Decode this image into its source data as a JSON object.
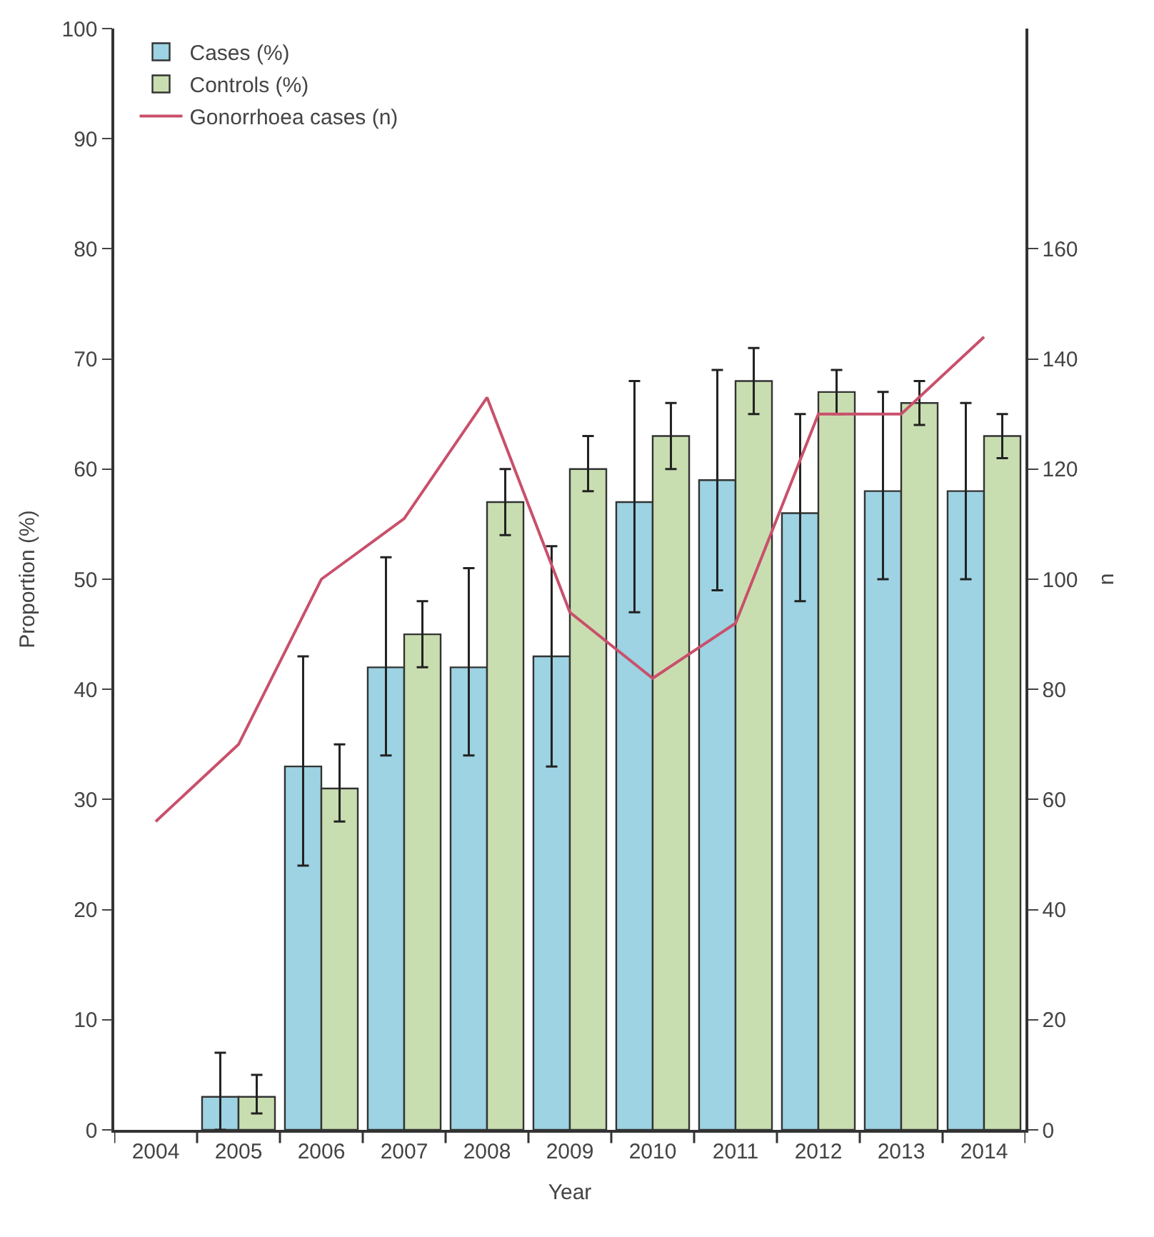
{
  "chart_data": {
    "type": "bar",
    "xlabel": "Year",
    "ylabel": "Proportion (%)",
    "y2label": "n",
    "categories": [
      "2004",
      "2005",
      "2006",
      "2007",
      "2008",
      "2009",
      "2010",
      "2011",
      "2012",
      "2013",
      "2014"
    ],
    "series": [
      {
        "name": "Cases (%)",
        "color": "#9dd3e3",
        "values": [
          null,
          3,
          33,
          42,
          42,
          43,
          57,
          59,
          56,
          58,
          58
        ],
        "errors": [
          null,
          [
            0,
            7
          ],
          [
            24,
            43
          ],
          [
            34,
            52
          ],
          [
            34,
            51
          ],
          [
            33,
            53
          ],
          [
            47,
            68
          ],
          [
            49,
            69
          ],
          [
            48,
            65
          ],
          [
            50,
            67
          ],
          [
            50,
            66
          ]
        ]
      },
      {
        "name": "Controls (%)",
        "color": "#c9deb0",
        "values": [
          null,
          3,
          31,
          45,
          57,
          60,
          63,
          68,
          67,
          66,
          63
        ],
        "errors": [
          null,
          [
            1.5,
            5
          ],
          [
            28,
            35
          ],
          [
            42,
            48
          ],
          [
            54,
            60
          ],
          [
            58,
            63
          ],
          [
            60,
            66
          ],
          [
            65,
            71
          ],
          [
            65,
            69
          ],
          [
            64,
            68
          ],
          [
            61,
            65
          ]
        ]
      },
      {
        "name": "Gonorrhoea cases (n)",
        "type": "line",
        "axis": "y2",
        "color": "#c9506b",
        "marker": "none",
        "values": [
          56,
          70,
          100,
          111,
          133,
          94,
          82,
          92,
          130,
          130,
          144
        ]
      }
    ],
    "ylim": [
      0,
      100
    ],
    "yticks": [
      0,
      10,
      20,
      30,
      40,
      50,
      60,
      70,
      80,
      90,
      100
    ],
    "y2lim": [
      0,
      200
    ],
    "y2ticks": [
      0,
      20,
      40,
      60,
      80,
      100,
      120,
      140,
      160
    ],
    "legend": "top left"
  }
}
